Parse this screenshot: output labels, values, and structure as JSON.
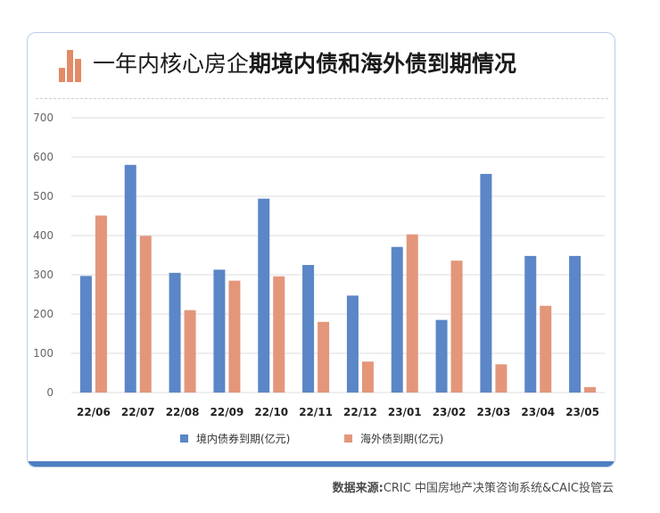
{
  "title": {
    "light": "一年内核心房企",
    "bold": "期境内债和海外债到期情况"
  },
  "source": {
    "label": "数据来源:",
    "text": "CRIC 中国房地产决策咨询系统&CAIC投管云"
  },
  "colors": {
    "domestic": "#5b86c7",
    "overseas": "#e3967a",
    "card_border": "#b9cde6",
    "card_bottom": "#4f7fc2",
    "grid": "#dcdcdc"
  },
  "chart_data": {
    "type": "bar",
    "categories": [
      "22/06",
      "22/07",
      "22/08",
      "22/09",
      "22/10",
      "22/11",
      "22/12",
      "23/01",
      "23/02",
      "23/03",
      "23/04",
      "23/05"
    ],
    "series": [
      {
        "name": "境内债券到期(亿元)",
        "values": [
          297,
          580,
          305,
          313,
          494,
          325,
          247,
          371,
          185,
          557,
          348,
          348
        ]
      },
      {
        "name": "海外债到期(亿元)",
        "values": [
          451,
          399,
          210,
          285,
          296,
          180,
          79,
          403,
          336,
          72,
          221,
          14
        ]
      }
    ],
    "yticks": [
      "0",
      "100",
      "200",
      "300",
      "400",
      "500",
      "600",
      "700"
    ],
    "ylim": [
      0,
      700
    ],
    "grid": true,
    "legend_position": "bottom"
  }
}
